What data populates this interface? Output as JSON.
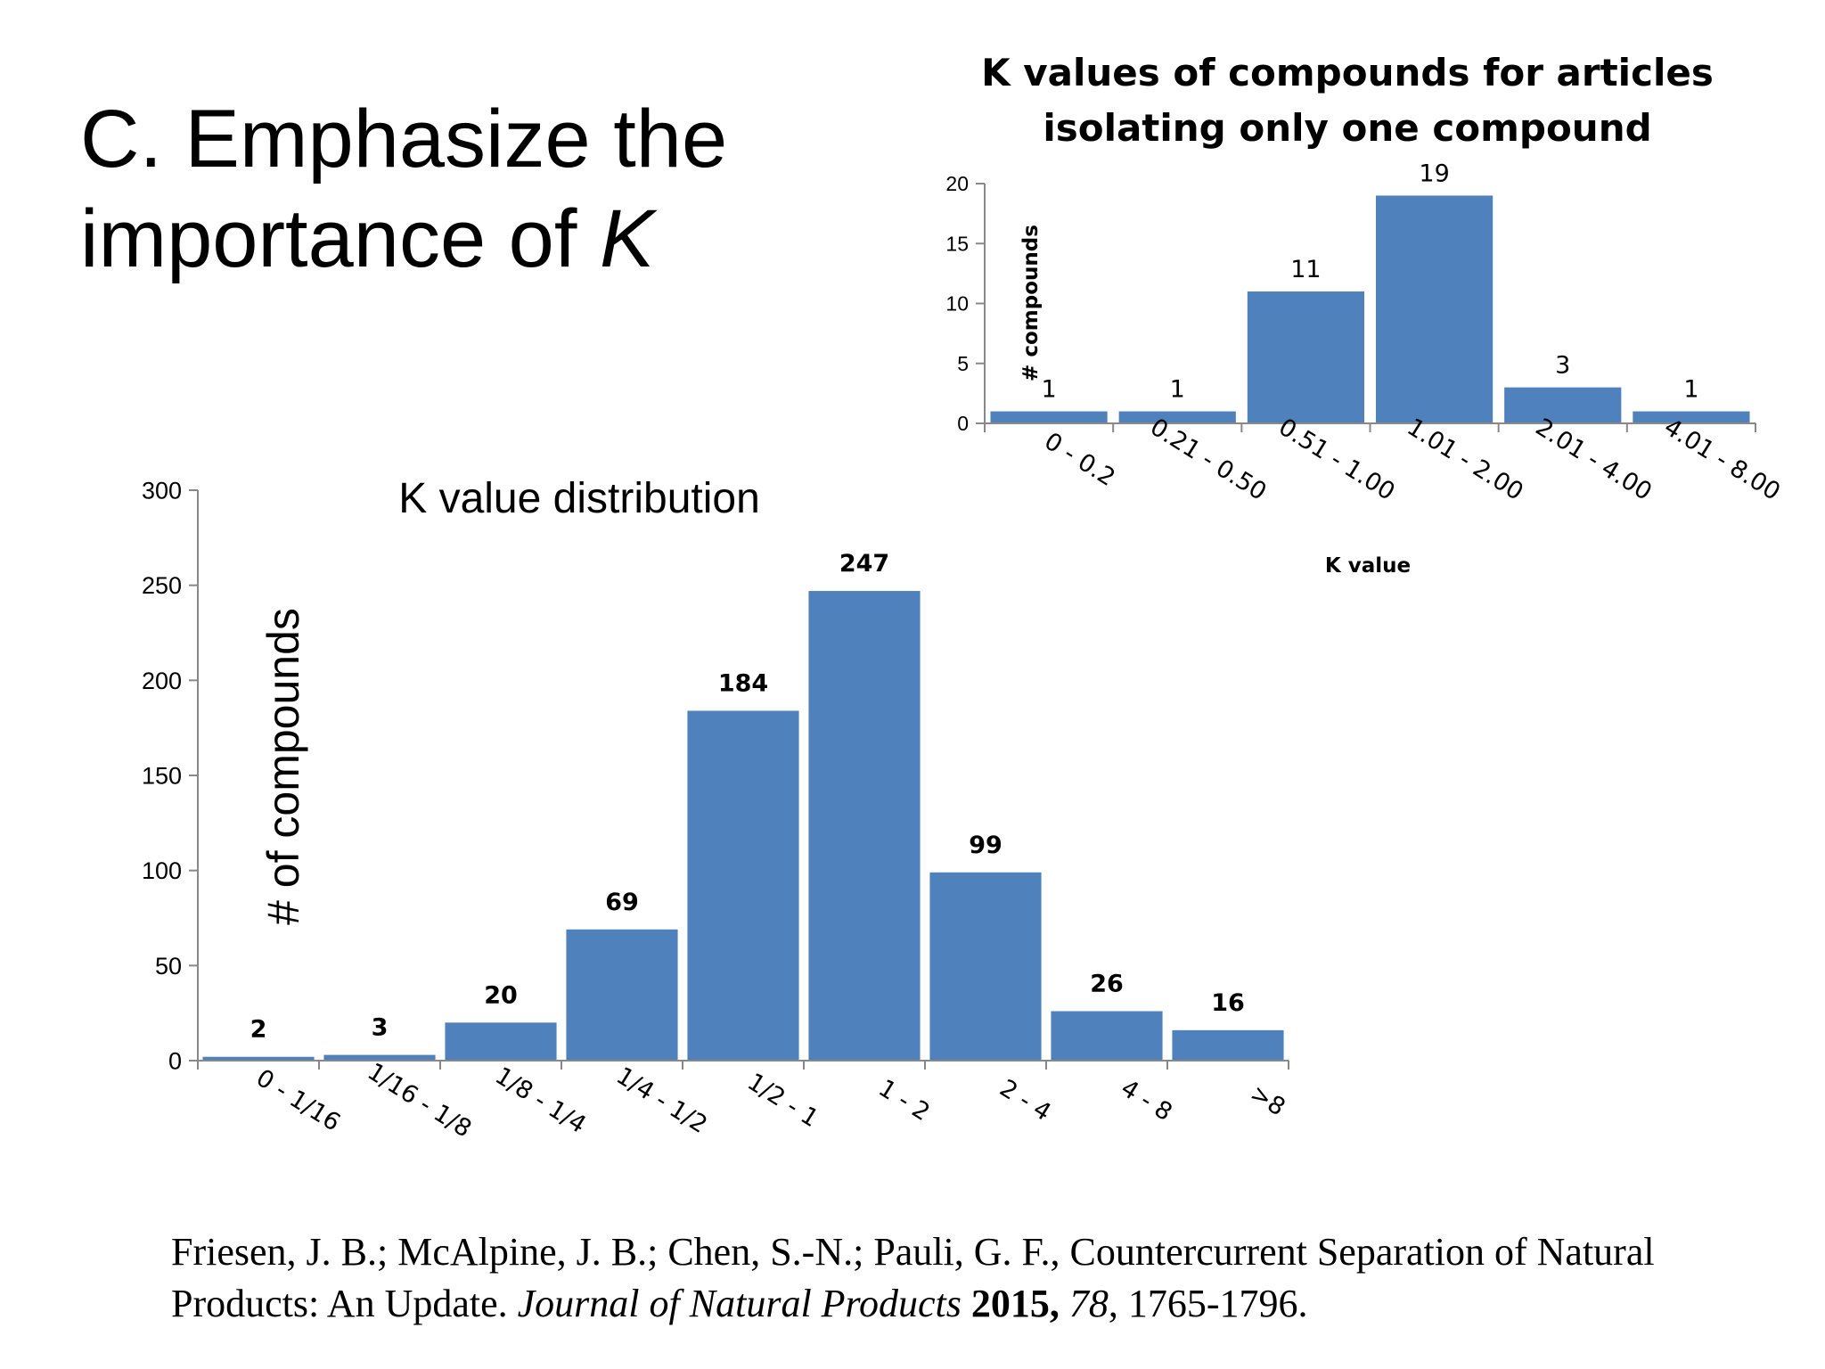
{
  "slide": {
    "title_line1": "C. Emphasize the",
    "title_line2_prefix": "importance of ",
    "title_line2_italic": "K"
  },
  "chart_data": [
    {
      "type": "bar",
      "title": "K value distribution",
      "xlabel": "",
      "ylabel": "# of compounds",
      "categories": [
        "0 - 1/16",
        "1/16 - 1/8",
        "1/8 - 1/4",
        "1/4 - 1/2",
        "1/2 - 1",
        "1 - 2",
        "2 - 4",
        "4 - 8",
        ">8"
      ],
      "values": [
        2,
        3,
        20,
        69,
        184,
        247,
        99,
        26,
        16
      ],
      "ylim": [
        0,
        300
      ],
      "yticks": [
        0,
        50,
        100,
        150,
        200,
        250,
        300
      ],
      "data_labels": true,
      "grid": false,
      "legend": "none",
      "bar_color": "#4f81bd"
    },
    {
      "type": "bar",
      "title": "K values of compounds for articles isolating only one compound",
      "xlabel": "K value",
      "ylabel": "# compounds",
      "categories": [
        "0 - 0.2",
        "0.21 - 0.50",
        "0.51 - 1.00",
        "1.01 - 2.00",
        "2.01 - 4.00",
        "4.01 - 8.00"
      ],
      "values": [
        1,
        1,
        11,
        19,
        3,
        1
      ],
      "ylim": [
        0,
        20
      ],
      "yticks": [
        0,
        5,
        10,
        15,
        20
      ],
      "data_labels": true,
      "grid": false,
      "legend": "none",
      "bar_color": "#4f81bd"
    }
  ],
  "citation": {
    "authors": "Friesen, J. B.; McAlpine, J. B.; Chen, S.-N.; Pauli, G. F., Countercurrent Separation of Natural Products: An Update. ",
    "journal": "Journal of Natural Products",
    "year": " 2015,",
    "volume": " 78",
    "pages": ", 1765-1796."
  }
}
